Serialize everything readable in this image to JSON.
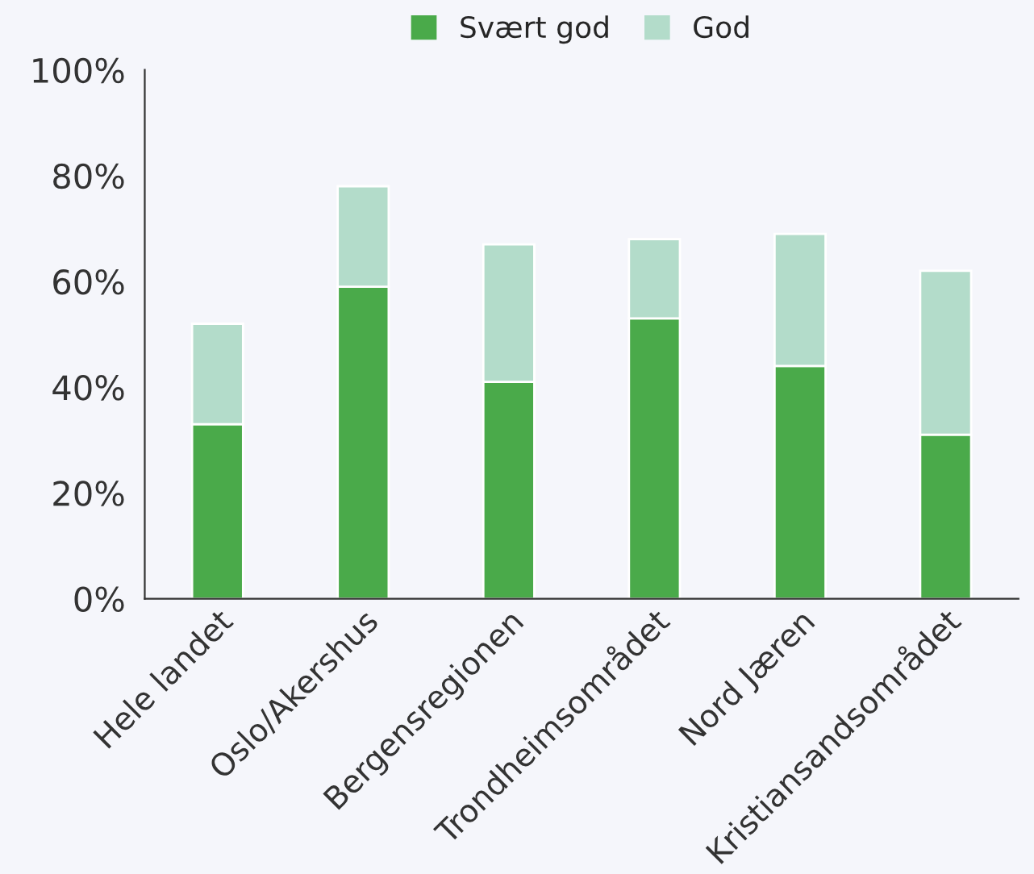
{
  "chart_data": {
    "type": "bar",
    "stacked": true,
    "categories": [
      "Hele landet",
      "Oslo/Akershus",
      "Bergensregionen",
      "Trondheimsområdet",
      "Nord Jæren",
      "Kristiansandsområdet"
    ],
    "series": [
      {
        "name": "Svært god",
        "color": "#4aaa4a",
        "values": [
          33,
          59,
          41,
          53,
          44,
          31
        ]
      },
      {
        "name": "God",
        "color": "#b3dcca",
        "values": [
          19,
          19,
          26,
          15,
          25,
          31
        ]
      }
    ],
    "ylim": [
      0,
      100
    ],
    "yticks": [
      {
        "value": 0,
        "label": "0%"
      },
      {
        "value": 20,
        "label": "20%"
      },
      {
        "value": 40,
        "label": "40%"
      },
      {
        "value": 60,
        "label": "60%"
      },
      {
        "value": 80,
        "label": "80%"
      },
      {
        "value": 100,
        "label": "100%"
      }
    ],
    "grid": false,
    "legend": "top"
  }
}
